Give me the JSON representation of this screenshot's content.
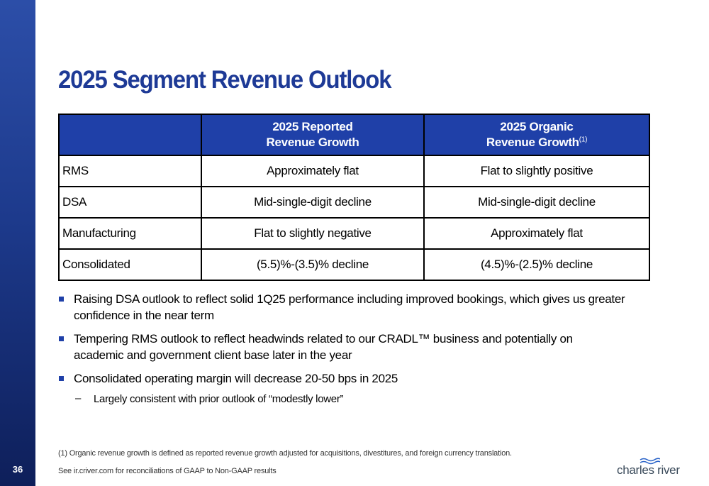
{
  "page_number": "36",
  "title": "2025 Segment Revenue Outlook",
  "table": {
    "headers": [
      {
        "text": "",
        "sup": ""
      },
      {
        "line1": "2025 Reported",
        "line2": "Revenue Growth",
        "sup": ""
      },
      {
        "line1": "2025 Organic",
        "line2": "Revenue Growth",
        "sup": "(1)"
      }
    ],
    "rows": [
      [
        "RMS",
        "Approximately flat",
        "Flat to slightly positive"
      ],
      [
        "DSA",
        "Mid-single-digit decline",
        "Mid-single-digit decline"
      ],
      [
        "Manufacturing",
        "Flat to slightly negative",
        "Approximately flat"
      ],
      [
        "Consolidated",
        "(5.5)%-(3.5)% decline",
        "(4.5)%-(2.5)% decline"
      ]
    ]
  },
  "bullets": [
    {
      "text": "Raising DSA outlook to reflect solid 1Q25 performance including improved bookings, which gives us greater confidence in the near term"
    },
    {
      "text": "Tempering RMS outlook to reflect headwinds related to our CRADL™ business and potentially on academic and government client base later in the year"
    },
    {
      "text": "Consolidated operating margin will decrease 20-50 bps in 2025",
      "sub": {
        "marker": "–",
        "text": "Largely consistent with prior outlook of “modestly lower”"
      }
    }
  ],
  "footnote": "(1)  Organic revenue growth is defined as reported revenue growth adjusted for acquisitions, divestitures, and foreign currency translation.",
  "source_note": "See ir.criver.com for reconciliations of GAAP to Non-GAAP results",
  "logo_text": "charles river",
  "colors": {
    "brand_blue": "#1f40a8",
    "sidebar_dark": "#0e1f5a"
  }
}
